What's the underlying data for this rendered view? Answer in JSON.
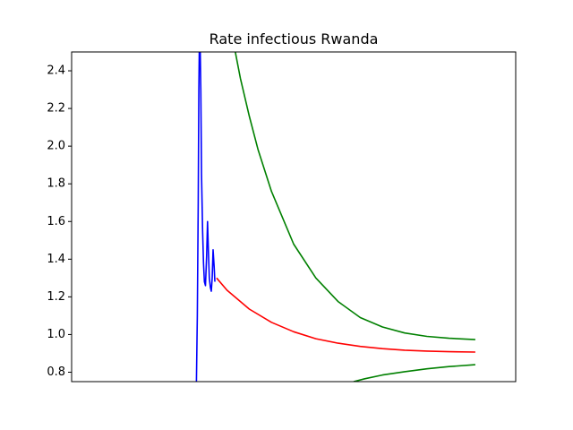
{
  "chart_data": {
    "type": "line",
    "title": "Rate infectious Rwanda",
    "xlabel": "",
    "ylabel": "",
    "x_ticks_shown": false,
    "xlim": [
      0,
      1
    ],
    "ylim": [
      0.75,
      2.5
    ],
    "y_ticks": [
      0.8,
      1.0,
      1.2,
      1.4,
      1.6,
      1.8,
      2.0,
      2.2,
      2.4
    ],
    "y_tick_labels": [
      "0.8",
      "1.0",
      "1.2",
      "1.4",
      "1.6",
      "1.8",
      "2.0",
      "2.2",
      "2.4"
    ],
    "grid": false,
    "legend": "none",
    "series": [
      {
        "color": "#0000ff",
        "points": [
          [
            0.281,
            0.75
          ],
          [
            0.283,
            1.1
          ],
          [
            0.285,
            1.7
          ],
          [
            0.2865,
            2.3
          ],
          [
            0.288,
            2.6
          ],
          [
            0.2895,
            2.52
          ],
          [
            0.291,
            2.3
          ],
          [
            0.2925,
            1.85
          ],
          [
            0.295,
            1.55
          ],
          [
            0.297,
            1.38
          ],
          [
            0.299,
            1.28
          ],
          [
            0.3015,
            1.26
          ],
          [
            0.304,
            1.42
          ],
          [
            0.306,
            1.6
          ],
          [
            0.308,
            1.44
          ],
          [
            0.31,
            1.3
          ],
          [
            0.3125,
            1.25
          ],
          [
            0.3145,
            1.23
          ],
          [
            0.3165,
            1.3
          ],
          [
            0.3185,
            1.45
          ],
          [
            0.321,
            1.36
          ],
          [
            0.3225,
            1.28
          ]
        ]
      },
      {
        "color": "#ff0000",
        "points": [
          [
            0.3265,
            1.3
          ],
          [
            0.35,
            1.235
          ],
          [
            0.4,
            1.135
          ],
          [
            0.45,
            1.065
          ],
          [
            0.5,
            1.015
          ],
          [
            0.55,
            0.978
          ],
          [
            0.6,
            0.954
          ],
          [
            0.65,
            0.937
          ],
          [
            0.7,
            0.925
          ],
          [
            0.75,
            0.917
          ],
          [
            0.8,
            0.912
          ],
          [
            0.85,
            0.909
          ],
          [
            0.909,
            0.907
          ]
        ]
      },
      {
        "color": "#008000",
        "points": [
          [
            0.367,
            2.52
          ],
          [
            0.38,
            2.36
          ],
          [
            0.4,
            2.16
          ],
          [
            0.42,
            1.98
          ],
          [
            0.45,
            1.76
          ],
          [
            0.5,
            1.48
          ],
          [
            0.55,
            1.3
          ],
          [
            0.6,
            1.175
          ],
          [
            0.65,
            1.09
          ],
          [
            0.7,
            1.04
          ],
          [
            0.75,
            1.008
          ],
          [
            0.8,
            0.99
          ],
          [
            0.85,
            0.98
          ],
          [
            0.909,
            0.973
          ]
        ]
      },
      {
        "color": "#008000",
        "points": [
          [
            0.635,
            0.75
          ],
          [
            0.66,
            0.765
          ],
          [
            0.7,
            0.785
          ],
          [
            0.75,
            0.803
          ],
          [
            0.8,
            0.818
          ],
          [
            0.85,
            0.83
          ],
          [
            0.909,
            0.84
          ]
        ]
      }
    ]
  }
}
